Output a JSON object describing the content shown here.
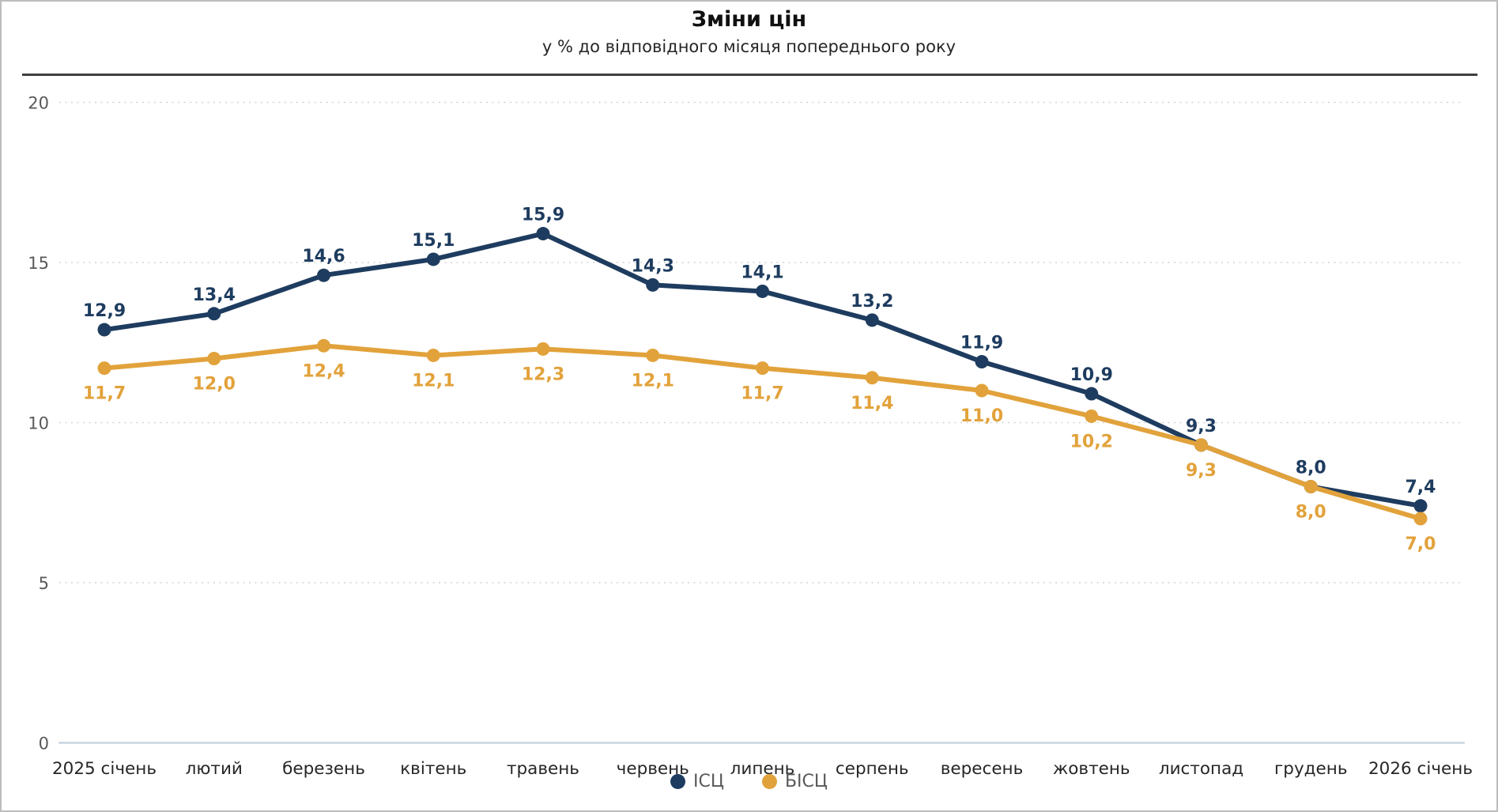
{
  "page": {
    "title": "Зміни цін",
    "subtitle": "у % до відповідного місяця попереднього року"
  },
  "legend": [
    {
      "label": "ІСЦ",
      "color": "#1e3c5f"
    },
    {
      "label": "БІСЦ",
      "color": "#e2a23b"
    }
  ],
  "chart_data": {
    "type": "line",
    "title": "Зміни цін",
    "subtitle": "у % до відповідного місяця попереднього року",
    "categories": [
      "2025 січень",
      "лютий",
      "березень",
      "квітень",
      "травень",
      "червень",
      "липень",
      "серпень",
      "вересень",
      "жовтень",
      "листопад",
      "грудень",
      "2026 січень"
    ],
    "series": [
      {
        "name": "ІСЦ",
        "color": "#1e3c5f",
        "values": [
          12.9,
          13.4,
          14.6,
          15.1,
          15.9,
          14.3,
          14.1,
          13.2,
          11.9,
          10.9,
          9.3,
          8.0,
          7.4
        ]
      },
      {
        "name": "БІСЦ",
        "color": "#e2a23b",
        "values": [
          11.7,
          12.0,
          12.4,
          12.1,
          12.3,
          12.1,
          11.7,
          11.4,
          11.0,
          10.2,
          9.3,
          8.0,
          7.0
        ]
      }
    ],
    "ylim": [
      0,
      20
    ],
    "yticks": [
      0,
      5,
      10,
      15,
      20
    ],
    "grid": true,
    "decimal_separator": ",",
    "data_labels": true,
    "legend_position": "bottom"
  },
  "colors": {
    "grid": "#d2d2d2",
    "axis_line": "#c9d6e3",
    "tick_label": "#595959",
    "x_label": "#262626",
    "divider": "#3f3f3f",
    "legend_text": "#595959"
  }
}
